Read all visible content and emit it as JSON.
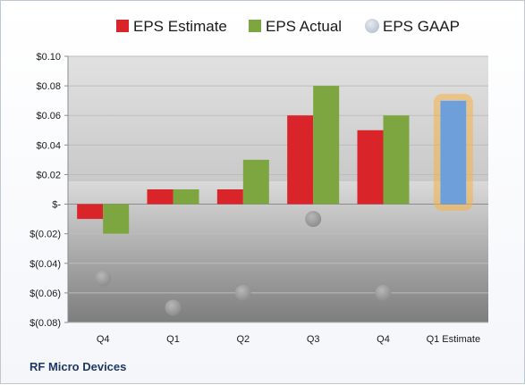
{
  "company_name": "RF Micro Devices",
  "colors": {
    "estimate": "#d9242a",
    "actual": "#7ea640",
    "gaap": "#a8a8a8",
    "forecast": "#6f9fd8",
    "forecast_glow": "#f5b342"
  },
  "chart_data": {
    "type": "bar",
    "title": "",
    "xlabel": "",
    "ylabel": "",
    "categories": [
      "Q4",
      "Q1",
      "Q2",
      "Q3",
      "Q4",
      "Q1 Estimate"
    ],
    "series": [
      {
        "name": "EPS Estimate",
        "values": [
          -0.01,
          0.01,
          0.01,
          0.06,
          0.05,
          null
        ]
      },
      {
        "name": "EPS Actual",
        "values": [
          -0.02,
          0.01,
          0.03,
          0.08,
          0.06,
          null
        ]
      },
      {
        "name": "EPS GAAP",
        "values": [
          -0.05,
          -0.07,
          -0.06,
          -0.01,
          -0.06,
          null
        ]
      }
    ],
    "forecast": {
      "category": "Q1 Estimate",
      "value": 0.07
    },
    "ylim": [
      -0.08,
      0.1
    ],
    "yticks": [
      0.1,
      0.08,
      0.06,
      0.04,
      0.02,
      0,
      -0.02,
      -0.04,
      -0.06,
      -0.08
    ],
    "ytick_labels": [
      "$0.10",
      "$0.08",
      "$0.06",
      "$0.04",
      "$0.02",
      "$-",
      "$(0.02)",
      "$(0.04)",
      "$(0.06)",
      "$(0.08)"
    ],
    "grid": true,
    "legend_position": "top"
  }
}
